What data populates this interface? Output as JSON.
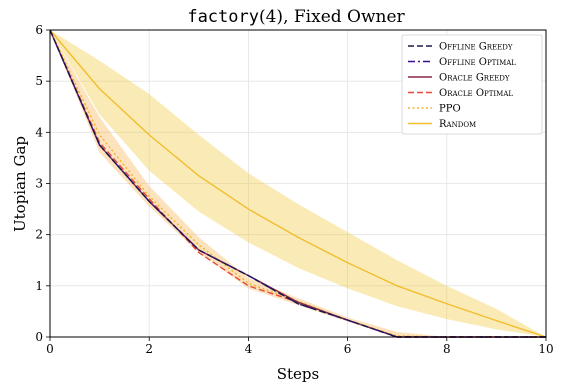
{
  "chart_data": {
    "type": "line",
    "title_func": "factory",
    "title_args": "(4), Fixed Owner",
    "xlabel": "Steps",
    "ylabel": "Utopian Gap",
    "xlim": [
      0,
      10
    ],
    "ylim": [
      0,
      6
    ],
    "xticks": [
      "0",
      "2",
      "4",
      "6",
      "8",
      "10"
    ],
    "yticks": [
      "0",
      "1",
      "2",
      "3",
      "4",
      "5",
      "6"
    ],
    "grid": true,
    "legend_position": "top-right",
    "x": [
      0,
      1,
      2,
      3,
      4,
      5,
      6,
      7,
      8,
      9,
      10
    ],
    "series": [
      {
        "name": "Offline Greedy",
        "color": "#1a1a4a",
        "dash": "dashed",
        "values": [
          6,
          3.75,
          2.65,
          1.7,
          1.2,
          0.65,
          0.33,
          0.0,
          0.0,
          0.0,
          0.0
        ]
      },
      {
        "name": "Offline Optimal",
        "color": "#3a0f8c",
        "dash": "dashdot",
        "values": [
          6,
          3.75,
          2.65,
          1.7,
          1.2,
          0.65,
          0.33,
          0.0,
          0.0,
          0.0,
          0.0
        ]
      },
      {
        "name": "Oracle Greedy",
        "color": "#8a2845",
        "dash": "solid",
        "values": [
          6,
          3.75,
          2.65,
          1.7,
          1.2,
          0.68,
          0.33,
          0.0,
          0.0,
          0.0,
          0.0
        ]
      },
      {
        "name": "Oracle Optimal",
        "color": "#e8473c",
        "dash": "dashed",
        "values": [
          6,
          3.8,
          2.7,
          1.65,
          1.0,
          0.68,
          0.33,
          0.0,
          0.0,
          0.0,
          0.0
        ]
      },
      {
        "name": "PPO",
        "color": "#f1b626",
        "dash": "dotted",
        "values": [
          6,
          3.95,
          2.75,
          1.8,
          1.05,
          0.7,
          0.33,
          0.02,
          0.0,
          0.0,
          0.0
        ],
        "band_low": [
          6,
          3.6,
          2.55,
          1.65,
          0.95,
          0.62,
          0.3,
          0.0,
          0.0,
          0.0,
          0.0
        ],
        "band_high": [
          6,
          4.3,
          2.95,
          1.95,
          1.15,
          0.76,
          0.38,
          0.1,
          0.0,
          0.0,
          0.0
        ]
      },
      {
        "name": "Random",
        "color": "#f2bd2e",
        "dash": "solid",
        "values": [
          6,
          4.85,
          3.95,
          3.15,
          2.5,
          1.95,
          1.45,
          1.0,
          0.65,
          0.32,
          0.0
        ],
        "band_low": [
          6,
          4.35,
          3.25,
          2.45,
          1.85,
          1.35,
          0.95,
          0.6,
          0.35,
          0.15,
          0.0
        ],
        "band_high": [
          6,
          5.4,
          4.75,
          3.95,
          3.2,
          2.6,
          2.05,
          1.5,
          1.0,
          0.55,
          0.0
        ]
      }
    ]
  }
}
